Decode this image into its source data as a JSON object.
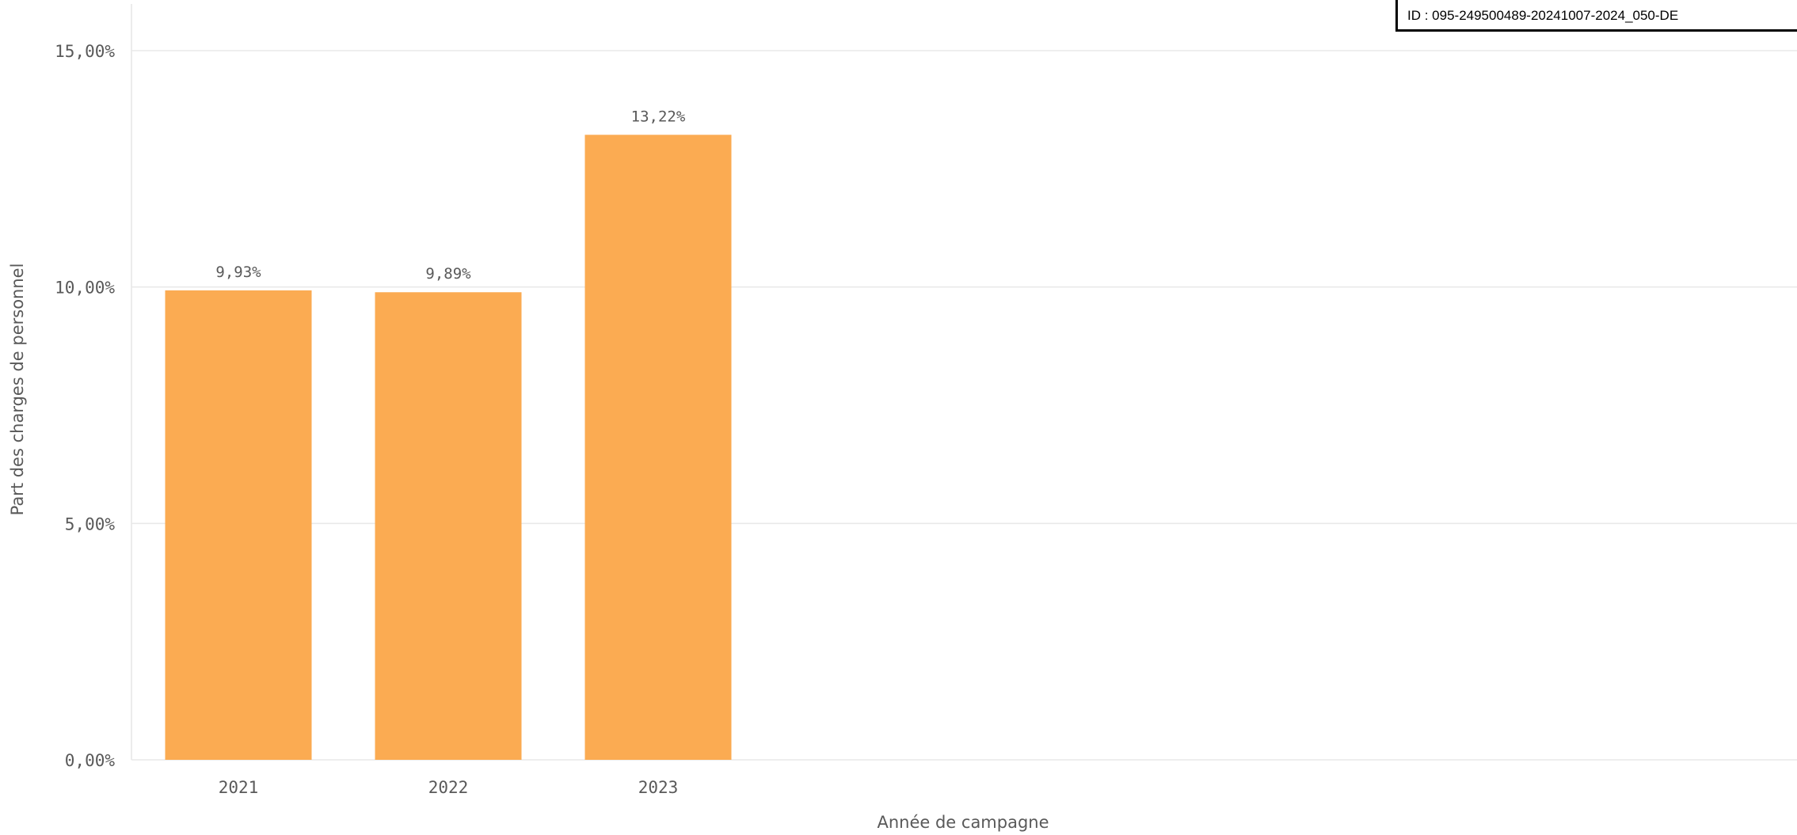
{
  "id_label": "ID : 095-249500489-20241007-2024_050-DE",
  "chart_data": {
    "type": "bar",
    "categories": [
      "2021",
      "2022",
      "2023"
    ],
    "values": [
      9.93,
      9.89,
      13.22
    ],
    "data_labels": [
      "9,93%",
      "9,89%",
      "13,22%"
    ],
    "xlabel": "Année de campagne",
    "ylabel": "Part des charges de personnel",
    "ylim": [
      0,
      15
    ],
    "yticks": [
      0,
      5,
      10,
      15
    ],
    "ytick_labels": [
      "0,00%",
      "5,00%",
      "10,00%",
      "15,00%"
    ],
    "grid": true,
    "legend": "none",
    "bar_color": "#fbab52"
  }
}
